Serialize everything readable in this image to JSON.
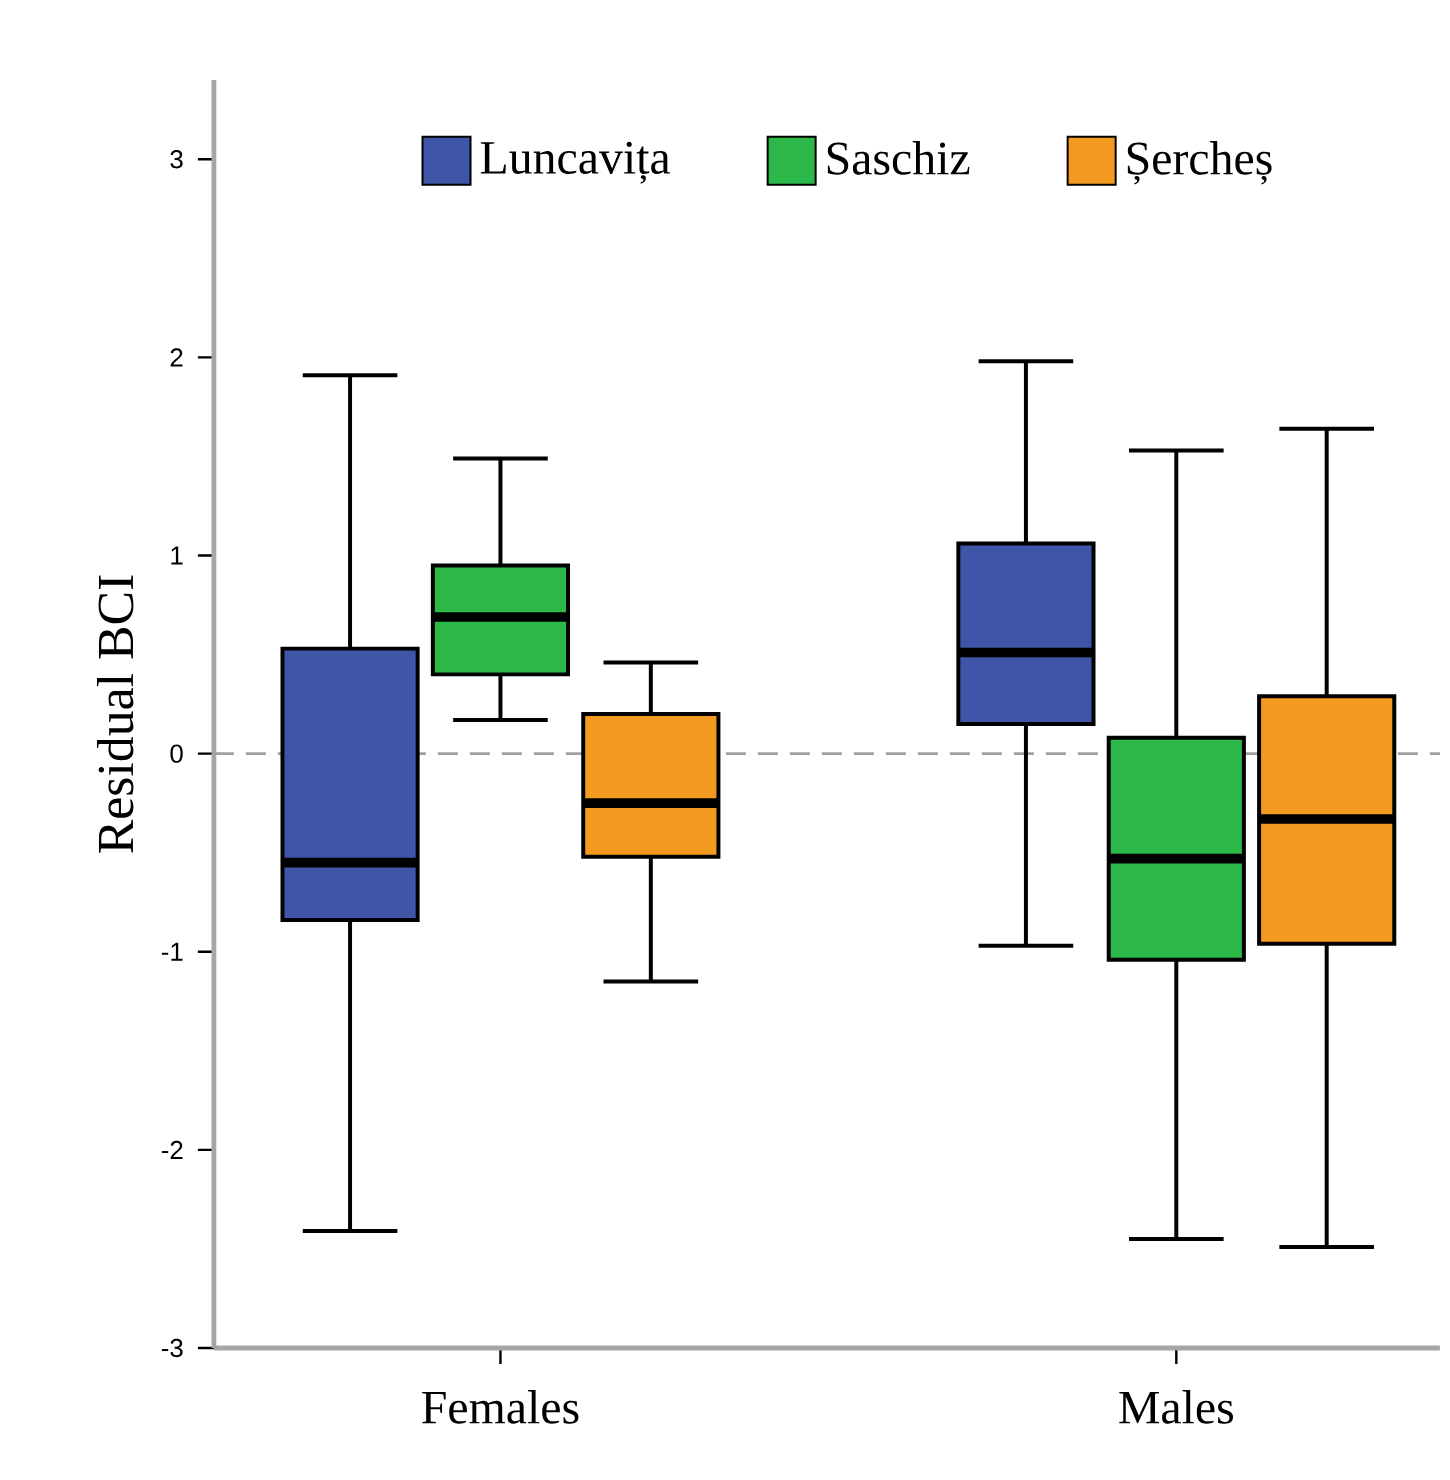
{
  "chart_data": {
    "type": "box",
    "ylabel": "Residual BCI",
    "categories": [
      "Females",
      "Males"
    ],
    "ylim": [
      -3,
      3.4
    ],
    "yticks": [
      -3,
      -2,
      -1,
      0,
      1,
      2,
      3
    ],
    "legend": "top",
    "series": [
      {
        "name": "Luncavița",
        "color": "#3f56a8",
        "boxes": [
          {
            "low": -2.41,
            "q1": -0.84,
            "median": -0.55,
            "q3": 0.53,
            "high": 1.91
          },
          {
            "low": -0.97,
            "q1": 0.15,
            "median": 0.51,
            "q3": 1.06,
            "high": 1.98
          }
        ]
      },
      {
        "name": "Saschiz",
        "color": "#2db84a",
        "boxes": [
          {
            "low": 0.17,
            "q1": 0.4,
            "median": 0.69,
            "q3": 0.95,
            "high": 1.49
          },
          {
            "low": -2.45,
            "q1": -1.04,
            "median": -0.53,
            "q3": 0.08,
            "high": 1.53
          }
        ]
      },
      {
        "name": "Șercheș",
        "color": "#f59a20",
        "boxes": [
          {
            "low": -1.15,
            "q1": -0.52,
            "median": -0.25,
            "q3": 0.2,
            "high": 0.46
          },
          {
            "low": -2.49,
            "q1": -0.96,
            "median": -0.33,
            "q3": 0.29,
            "high": 1.64
          }
        ]
      }
    ],
    "ref_lines": [
      {
        "axis": "y",
        "value": 0,
        "color": "#a0a0a0",
        "line_style": "dashed"
      }
    ]
  }
}
